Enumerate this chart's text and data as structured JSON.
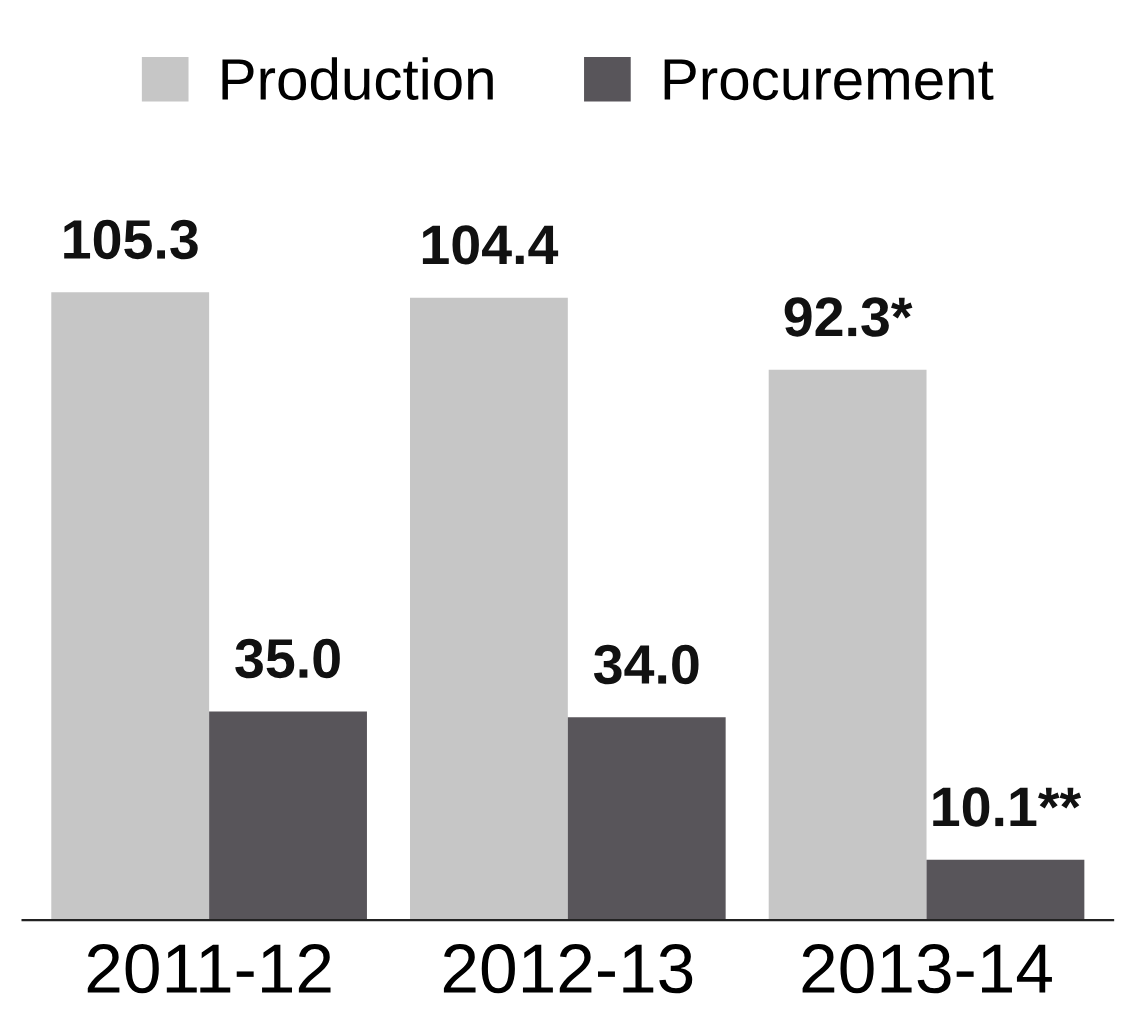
{
  "chart_data": {
    "type": "bar",
    "categories": [
      "2011-12",
      "2012-13",
      "2013-14"
    ],
    "series": [
      {
        "name": "Production",
        "color": "#c6c6c6",
        "values": [
          105.3,
          104.4,
          92.3
        ],
        "value_labels": [
          "105.3",
          "104.4",
          "92.3*"
        ]
      },
      {
        "name": "Procurement",
        "color": "#58555a",
        "values": [
          35.0,
          34.0,
          10.1
        ],
        "value_labels": [
          "35.0",
          "34.0",
          "10.1**"
        ]
      }
    ],
    "legend": "top",
    "grid": false
  }
}
